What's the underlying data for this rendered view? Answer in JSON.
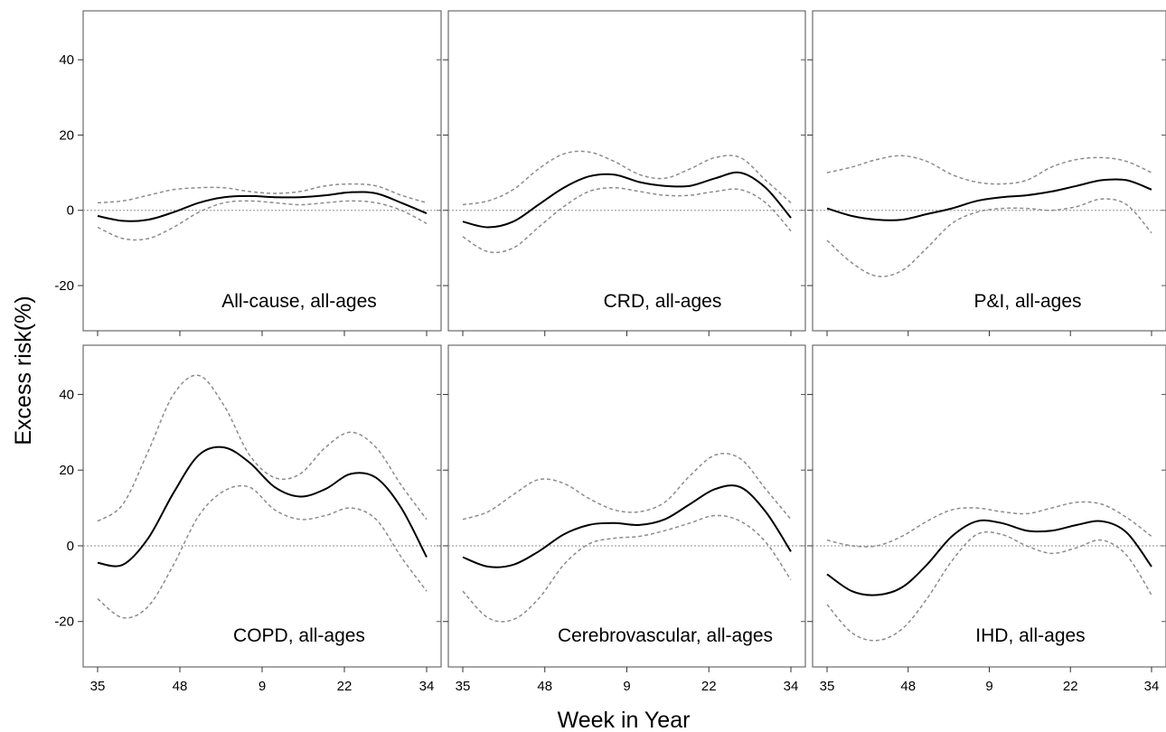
{
  "figure": {
    "ylabel": "Excess risk(%)",
    "xlabel": "Week in Year"
  },
  "chart_data": [
    {
      "type": "line",
      "label": "All-cause, all-ages",
      "x_ticks": [
        "35",
        "48",
        "9",
        "22",
        "34"
      ],
      "x": [
        0,
        4,
        8,
        12,
        16,
        20,
        24,
        28,
        32,
        36,
        40,
        44,
        48,
        52
      ],
      "ylim": [
        -32,
        53
      ],
      "y_ticks": [
        40,
        20,
        0,
        -20
      ],
      "reference_line": 0,
      "series": [
        {
          "role": "estimate",
          "values": [
            -1.5,
            -2.8,
            -2.5,
            -0.5,
            2,
            3.5,
            3.8,
            3.5,
            3.5,
            4,
            4.8,
            4.5,
            2,
            -0.8
          ]
        },
        {
          "role": "upper",
          "values": [
            2,
            2.5,
            4,
            5.5,
            6,
            6,
            5,
            4.5,
            5,
            6.5,
            7,
            6.5,
            4,
            2
          ]
        },
        {
          "role": "lower",
          "values": [
            -4.5,
            -7.5,
            -7.5,
            -4.5,
            -0.5,
            2,
            2.5,
            2,
            1.5,
            2,
            2.5,
            2,
            0,
            -3.5
          ]
        }
      ]
    },
    {
      "type": "line",
      "label": "CRD, all-ages",
      "x_ticks": [
        "35",
        "48",
        "9",
        "22",
        "34"
      ],
      "x": [
        0,
        4,
        8,
        12,
        16,
        20,
        24,
        28,
        32,
        36,
        40,
        44,
        48,
        52
      ],
      "ylim": [
        -32,
        53
      ],
      "y_ticks": [
        40,
        20,
        0,
        -20
      ],
      "reference_line": 0,
      "series": [
        {
          "role": "estimate",
          "values": [
            -3,
            -4.5,
            -3,
            1.5,
            6,
            9,
            9.5,
            7.5,
            6.5,
            6.5,
            8.5,
            10,
            6,
            -2
          ]
        },
        {
          "role": "upper",
          "values": [
            1.5,
            2.5,
            5.5,
            11,
            15,
            15.5,
            13,
            9.5,
            8.5,
            11,
            14,
            14,
            8,
            2
          ]
        },
        {
          "role": "lower",
          "values": [
            -7,
            -11,
            -10,
            -4.5,
            1,
            5,
            6,
            5,
            4,
            4,
            5,
            5.5,
            2,
            -5.5
          ]
        }
      ]
    },
    {
      "type": "line",
      "label": "P&I, all-ages",
      "x_ticks": [
        "35",
        "48",
        "9",
        "22",
        "34"
      ],
      "x": [
        0,
        4,
        8,
        12,
        16,
        20,
        24,
        28,
        32,
        36,
        40,
        44,
        48,
        52
      ],
      "ylim": [
        -32,
        53
      ],
      "y_ticks": [
        40,
        20,
        0,
        -20
      ],
      "reference_line": 0,
      "series": [
        {
          "role": "estimate",
          "values": [
            0.5,
            -1.5,
            -2.5,
            -2.5,
            -1,
            0.5,
            2.5,
            3.5,
            4,
            5,
            6.5,
            8,
            8,
            5.5
          ]
        },
        {
          "role": "upper",
          "values": [
            10,
            11.5,
            13.5,
            14.5,
            13,
            9.5,
            7.5,
            7,
            8,
            11.5,
            13.5,
            14,
            13,
            10
          ]
        },
        {
          "role": "lower",
          "values": [
            -8,
            -14,
            -17.5,
            -16,
            -10,
            -3.5,
            -0.5,
            0.5,
            0.5,
            0,
            1,
            3,
            1.5,
            -6
          ]
        }
      ]
    },
    {
      "type": "line",
      "label": "COPD, all-ages",
      "x_ticks": [
        "35",
        "48",
        "9",
        "22",
        "34"
      ],
      "x": [
        0,
        4,
        8,
        12,
        16,
        20,
        24,
        28,
        32,
        36,
        40,
        44,
        48,
        52
      ],
      "ylim": [
        -32,
        53
      ],
      "y_ticks": [
        40,
        20,
        0,
        -20
      ],
      "reference_line": 0,
      "series": [
        {
          "role": "estimate",
          "values": [
            -4.5,
            -5,
            2,
            14,
            24,
            26,
            22,
            15.5,
            13,
            15,
            19,
            18,
            10,
            -3
          ]
        },
        {
          "role": "upper",
          "values": [
            6.5,
            11,
            25,
            40,
            45,
            37,
            24,
            18,
            19,
            26,
            30,
            26,
            16,
            7
          ]
        },
        {
          "role": "lower",
          "values": [
            -14,
            -19,
            -16,
            -5,
            8,
            14.5,
            15.5,
            9.5,
            7,
            8,
            10,
            7,
            -3,
            -12
          ]
        }
      ]
    },
    {
      "type": "line",
      "label": "Cerebrovascular, all-ages",
      "x_ticks": [
        "35",
        "48",
        "9",
        "22",
        "34"
      ],
      "x": [
        0,
        4,
        8,
        12,
        16,
        20,
        24,
        28,
        32,
        36,
        40,
        44,
        48,
        52
      ],
      "ylim": [
        -32,
        53
      ],
      "y_ticks": [
        40,
        20,
        0,
        -20
      ],
      "reference_line": 0,
      "series": [
        {
          "role": "estimate",
          "values": [
            -3,
            -5.5,
            -5,
            -1.5,
            3,
            5.5,
            6,
            5.5,
            7,
            11,
            15,
            15.5,
            9,
            -1.5
          ]
        },
        {
          "role": "upper",
          "values": [
            7,
            9,
            13.5,
            17.5,
            16.5,
            12.5,
            9.5,
            9,
            11.5,
            18.5,
            24,
            23,
            15,
            7
          ]
        },
        {
          "role": "lower",
          "values": [
            -12,
            -19,
            -19.5,
            -14,
            -5,
            0.5,
            2,
            2.5,
            4,
            6,
            8,
            6.5,
            1,
            -9
          ]
        }
      ]
    },
    {
      "type": "line",
      "label": "IHD, all-ages",
      "x_ticks": [
        "35",
        "48",
        "9",
        "22",
        "34"
      ],
      "x": [
        0,
        4,
        8,
        12,
        16,
        20,
        24,
        28,
        32,
        36,
        40,
        44,
        48,
        52
      ],
      "ylim": [
        -32,
        53
      ],
      "y_ticks": [
        40,
        20,
        0,
        -20
      ],
      "reference_line": 0,
      "series": [
        {
          "role": "estimate",
          "values": [
            -7.5,
            -12,
            -13,
            -11,
            -5,
            2.5,
            6.5,
            6,
            4,
            4,
            5.5,
            6.5,
            3.5,
            -5.5
          ]
        },
        {
          "role": "upper",
          "values": [
            1.5,
            0,
            0,
            2.5,
            6.5,
            9.5,
            10,
            9,
            8.5,
            10,
            11.5,
            11,
            7.5,
            2.5
          ]
        },
        {
          "role": "lower",
          "values": [
            -15.5,
            -23,
            -25,
            -22,
            -14,
            -4,
            3,
            3,
            0,
            -2,
            -0.5,
            1.5,
            -2.5,
            -13
          ]
        }
      ]
    }
  ]
}
